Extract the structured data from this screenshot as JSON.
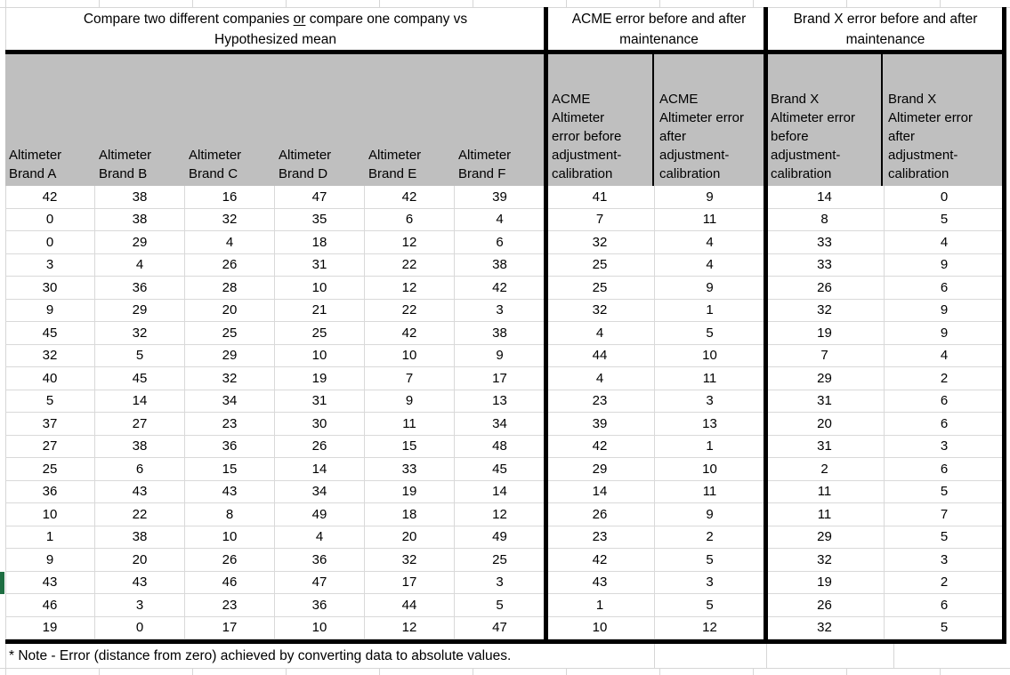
{
  "titles": {
    "compare_line1_pre": "Compare two different companies ",
    "compare_or": "or",
    "compare_line1_post": " compare one company vs",
    "compare_line2": "Hypothesized mean",
    "acme": "ACME error before and after maintenance",
    "brandx": "Brand X error before and after maintenance"
  },
  "table": {
    "col_headers": [
      "Altimeter\nBrand A",
      "Altimeter\nBrand B",
      "Altimeter\nBrand C",
      "Altimeter\nBrand D",
      "Altimeter\nBrand E",
      "Altimeter\nBrand F",
      " ACME\nAltimeter\nerror before\nadjustment-\ncalibration",
      "ACME\nAltimeter error\nafter\nadjustment-\ncalibration",
      "Brand X\nAltimeter error\nbefore\nadjustment-\ncalibration",
      "Brand X\nAltimeter error\nafter\nadjustment-\ncalibration"
    ],
    "rows": [
      [
        42,
        38,
        16,
        47,
        42,
        39,
        41,
        9,
        14,
        0
      ],
      [
        0,
        38,
        32,
        35,
        6,
        4,
        7,
        11,
        8,
        5
      ],
      [
        0,
        29,
        4,
        18,
        12,
        6,
        32,
        4,
        33,
        4
      ],
      [
        3,
        4,
        26,
        31,
        22,
        38,
        25,
        4,
        33,
        9
      ],
      [
        30,
        36,
        28,
        10,
        12,
        42,
        25,
        9,
        26,
        6
      ],
      [
        9,
        29,
        20,
        21,
        22,
        3,
        32,
        1,
        32,
        9
      ],
      [
        45,
        32,
        25,
        25,
        42,
        38,
        4,
        5,
        19,
        9
      ],
      [
        32,
        5,
        29,
        10,
        10,
        9,
        44,
        10,
        7,
        4
      ],
      [
        40,
        45,
        32,
        19,
        7,
        17,
        4,
        11,
        29,
        2
      ],
      [
        5,
        14,
        34,
        31,
        9,
        13,
        23,
        3,
        31,
        6
      ],
      [
        37,
        27,
        23,
        30,
        11,
        34,
        39,
        13,
        20,
        6
      ],
      [
        27,
        38,
        36,
        26,
        15,
        48,
        42,
        1,
        31,
        3
      ],
      [
        25,
        6,
        15,
        14,
        33,
        45,
        29,
        10,
        2,
        6
      ],
      [
        36,
        43,
        43,
        34,
        19,
        14,
        14,
        11,
        11,
        5
      ],
      [
        10,
        22,
        8,
        49,
        18,
        12,
        26,
        9,
        11,
        7
      ],
      [
        1,
        38,
        10,
        4,
        20,
        49,
        23,
        2,
        29,
        5
      ],
      [
        9,
        20,
        26,
        36,
        32,
        25,
        42,
        5,
        32,
        3
      ],
      [
        43,
        43,
        46,
        47,
        17,
        3,
        43,
        3,
        19,
        2
      ],
      [
        46,
        3,
        23,
        36,
        44,
        5,
        1,
        5,
        26,
        6
      ],
      [
        19,
        0,
        17,
        10,
        12,
        47,
        10,
        12,
        32,
        5
      ]
    ]
  },
  "note": "* Note - Error (distance from zero) achieved by converting data to absolute values.",
  "colors": {
    "header_fill": "#BFBFBF",
    "row_marker_green": "#1E6E42",
    "gridline": "#D9D9D9",
    "section_border": "#000000"
  }
}
